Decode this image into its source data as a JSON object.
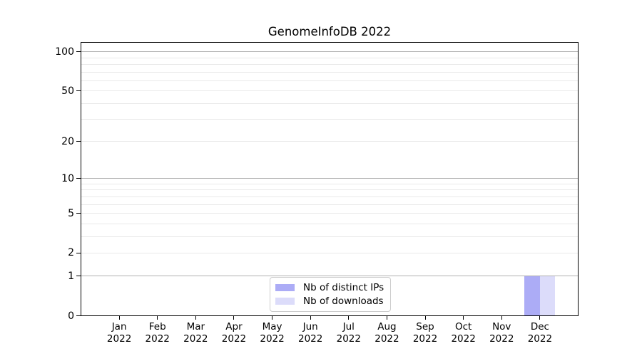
{
  "chart_data": {
    "type": "bar",
    "title": "GenomeInfoDB 2022",
    "categories": [
      "Jan 2022",
      "Feb 2022",
      "Mar 2022",
      "Apr 2022",
      "May 2022",
      "Jun 2022",
      "Jul 2022",
      "Aug 2022",
      "Sep 2022",
      "Oct 2022",
      "Nov 2022",
      "Dec 2022"
    ],
    "series": [
      {
        "name": "Nb of distinct IPs",
        "color": "#acacf6",
        "values": [
          0,
          0,
          0,
          0,
          0,
          0,
          0,
          0,
          0,
          0,
          0,
          1
        ]
      },
      {
        "name": "Nb of downloads",
        "color": "#dcdcfa",
        "values": [
          0,
          0,
          0,
          0,
          0,
          0,
          0,
          0,
          0,
          0,
          0,
          1
        ]
      }
    ],
    "xlabel": "",
    "ylabel": "",
    "y_ticks": [
      0,
      1,
      2,
      5,
      10,
      20,
      50,
      100
    ],
    "y_scale": "log10(1+y)",
    "ylim": [
      0,
      116
    ],
    "grid": "horizontal",
    "major_grid_values": [
      1,
      10,
      100
    ],
    "minor_grid_values": [
      2,
      3,
      4,
      5,
      6,
      7,
      8,
      9,
      20,
      30,
      40,
      50,
      60,
      70,
      80,
      90
    ],
    "legend_position": "lower center"
  },
  "colors": {
    "background": "#ffffff",
    "spine": "#000000",
    "major_grid": "#b0b0b0",
    "minor_grid": "#e9e9e9",
    "text": "#000000",
    "legend_border": "#cccccc",
    "bar_distinct_ips": "#acacf6",
    "bar_downloads": "#dcdcfa"
  }
}
